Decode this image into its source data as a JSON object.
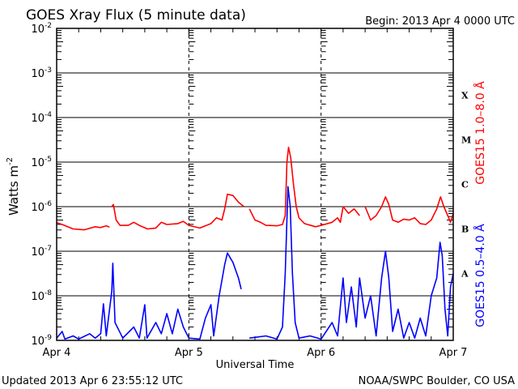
{
  "chart_data": {
    "type": "line",
    "title": "GOES Xray Flux (5 minute data)",
    "begin_label": "Begin:  2013 Apr 4 0000 UTC",
    "xlabel": "Universal Time",
    "ylabel": "Watts m",
    "ylabel_sup": "-2",
    "x_unit": "hours since 2013 Apr 4 0000 UTC",
    "xlim": [
      0,
      72
    ],
    "x_ticks": [
      {
        "t": 0,
        "label": "Apr 4"
      },
      {
        "t": 24,
        "label": "Apr 5"
      },
      {
        "t": 48,
        "label": "Apr 6"
      },
      {
        "t": 72,
        "label": "Apr 7"
      }
    ],
    "y_scale": "log",
    "ylim_log10": [
      -9,
      -2
    ],
    "y_ticks": [
      {
        "exp": -2,
        "label": "10",
        "sup": "-2"
      },
      {
        "exp": -3,
        "label": "10",
        "sup": "-3"
      },
      {
        "exp": -4,
        "label": "10",
        "sup": "-4"
      },
      {
        "exp": -5,
        "label": "10",
        "sup": "-5"
      },
      {
        "exp": -6,
        "label": "10",
        "sup": "-6"
      },
      {
        "exp": -7,
        "label": "10",
        "sup": "-7"
      },
      {
        "exp": -8,
        "label": "10",
        "sup": "-8"
      },
      {
        "exp": -9,
        "label": "10",
        "sup": "-9"
      }
    ],
    "flare_classes": [
      {
        "label": "X",
        "exp": -3.5
      },
      {
        "label": "M",
        "exp": -4.5
      },
      {
        "label": "C",
        "exp": -5.5
      },
      {
        "label": "B",
        "exp": -6.5
      },
      {
        "label": "A",
        "exp": -7.5
      }
    ],
    "grid": true,
    "series": [
      {
        "name": "GOES15 1.0–8.0 Å",
        "color": "#ff0000",
        "t": [
          0,
          1,
          3,
          5,
          7,
          8,
          9,
          9.6,
          null,
          10,
          10.3,
          10.8,
          11.5,
          13,
          14,
          15,
          16.5,
          18,
          19,
          20,
          22,
          23,
          24,
          26,
          28,
          29,
          30,
          30.5,
          31,
          32,
          33,
          34,
          null,
          35,
          36,
          37,
          38,
          40,
          41,
          41.5,
          41.8,
          42.1,
          42.5,
          43,
          43.5,
          44,
          45,
          47,
          48,
          50,
          51,
          51.5,
          52,
          53,
          54,
          55,
          null,
          56,
          57,
          58,
          59,
          59.7,
          60.3,
          61,
          62,
          63,
          64,
          65,
          66,
          67,
          68,
          69,
          69.7,
          70.3,
          71,
          71.5,
          72
        ],
        "log10_flux": [
          -6.36,
          -6.4,
          -6.5,
          -6.52,
          -6.45,
          -6.47,
          -6.43,
          -6.46,
          null,
          -6.0,
          -5.95,
          -6.3,
          -6.42,
          -6.42,
          -6.35,
          -6.42,
          -6.5,
          -6.48,
          -6.35,
          -6.4,
          -6.38,
          -6.33,
          -6.42,
          -6.48,
          -6.38,
          -6.25,
          -6.3,
          -6.05,
          -5.72,
          -5.75,
          -5.9,
          -6.0,
          null,
          -6.05,
          -6.3,
          -6.35,
          -6.42,
          -6.43,
          -6.4,
          -6.2,
          -5.0,
          -4.67,
          -4.9,
          -5.5,
          -6.0,
          -6.25,
          -6.38,
          -6.45,
          -6.42,
          -6.35,
          -6.25,
          -6.35,
          -6.0,
          -6.15,
          -6.05,
          -6.2,
          null,
          -6.0,
          -6.3,
          -6.2,
          -6.0,
          -5.78,
          -5.95,
          -6.3,
          -6.35,
          -6.28,
          -6.3,
          -6.25,
          -6.38,
          -6.4,
          -6.3,
          -6.05,
          -5.78,
          -6.0,
          -6.2,
          -6.35,
          -6.15
        ]
      },
      {
        "name": "GOES15 0.5–4.0 Å",
        "color": "#0000ff",
        "t": [
          0,
          1,
          1.5,
          3,
          4,
          6,
          7,
          8,
          8.5,
          9,
          10,
          10.2,
          10.6,
          12,
          14,
          15,
          16,
          16.4,
          18,
          19,
          20,
          21,
          22,
          23,
          24,
          26,
          27,
          28,
          28.5,
          29.5,
          30.5,
          31,
          32,
          33,
          33.5,
          null,
          35,
          38,
          40,
          41,
          41.5,
          42,
          42.4,
          42.8,
          43.3,
          44,
          46,
          48,
          50,
          51,
          52,
          52.6,
          53.5,
          54.4,
          55,
          56,
          57,
          58,
          59,
          59.7,
          60.3,
          61,
          62,
          63,
          64,
          65,
          66,
          67,
          68,
          69,
          69.6,
          70,
          70.5,
          71,
          71.5,
          72
        ],
        "log10_flux": [
          -8.95,
          -8.8,
          -8.97,
          -8.9,
          -8.97,
          -8.85,
          -8.95,
          -8.85,
          -8.18,
          -8.9,
          -7.9,
          -7.27,
          -8.6,
          -8.95,
          -8.7,
          -8.95,
          -8.2,
          -8.95,
          -8.6,
          -8.85,
          -8.4,
          -8.85,
          -8.3,
          -8.7,
          -8.95,
          -8.97,
          -8.5,
          -8.2,
          -8.9,
          -8.0,
          -7.3,
          -7.04,
          -7.25,
          -7.6,
          -7.85,
          null,
          -8.95,
          -8.9,
          -8.97,
          -8.7,
          -7.5,
          -5.55,
          -6.0,
          -7.5,
          -8.6,
          -8.95,
          -8.9,
          -8.97,
          -8.6,
          -8.9,
          -7.6,
          -8.6,
          -7.8,
          -8.7,
          -7.6,
          -8.5,
          -8.0,
          -8.9,
          -7.6,
          -7.0,
          -7.6,
          -8.8,
          -8.3,
          -8.95,
          -8.6,
          -8.95,
          -8.5,
          -8.9,
          -8.0,
          -7.6,
          -6.8,
          -7.1,
          -8.3,
          -8.9,
          -7.8,
          -7.5
        ]
      }
    ]
  },
  "footer": {
    "updated": "Updated 2013 Apr  6 23:55:12 UTC",
    "credit": "NOAA/SWPC Boulder, CO USA"
  }
}
